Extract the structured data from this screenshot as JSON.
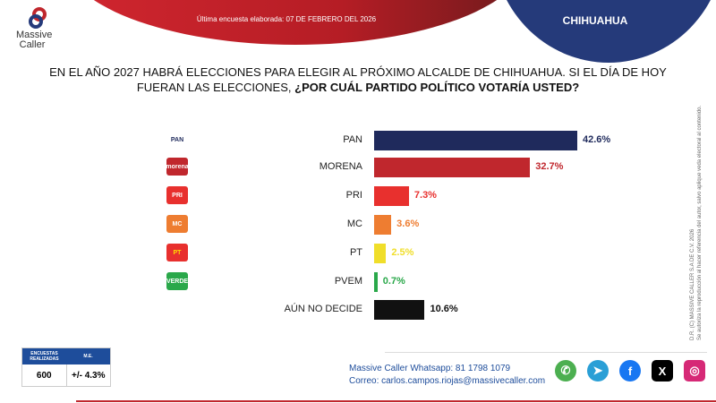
{
  "header": {
    "survey_date": "Última encuesta elaborada: 07 DE FEBRERO DEL 2026",
    "region": "CHIHUAHUA",
    "brand_line1": "Massive",
    "brand_line2": "Caller"
  },
  "question": {
    "part1": "EN EL AÑO 2027 HABRÁ ELECCIONES PARA ELEGIR AL PRÓXIMO ALCALDE DE CHIHUAHUA. SI EL DÍA DE HOY FUERAN LAS ELECCIONES, ",
    "part2": "¿POR CUÁL PARTIDO POLÍTICO VOTARÍA USTED?"
  },
  "copyright": {
    "line1": "D.R. (C) MASSIVE CALLER S.A DE C.V. 2026",
    "line2": "Se autoriza la reproducción al hacer referencia del autor, salvo aplique veda electoral al contenido."
  },
  "chart_data": {
    "type": "bar",
    "orientation": "horizontal",
    "categories": [
      "PAN",
      "MORENA",
      "PRI",
      "MC",
      "PT",
      "PVEM",
      "AÚN NO DECIDE"
    ],
    "values": [
      42.6,
      32.7,
      7.3,
      3.6,
      2.5,
      0.7,
      10.6
    ],
    "value_labels": [
      "42.6%",
      "32.7%",
      "7.3%",
      "3.6%",
      "2.5%",
      "0.7%",
      "10.6%"
    ],
    "colors": [
      "#1f2a5c",
      "#c0272d",
      "#e8302e",
      "#ee7d31",
      "#f0de2a",
      "#2aa84a",
      "#111111"
    ],
    "party_logos": [
      "PAN",
      "morena",
      "PRI",
      "MC",
      "PT",
      "VERDE",
      ""
    ],
    "grid": false,
    "legend": "none"
  },
  "stats": {
    "h1": "ENCUESTAS REALIZADAS",
    "h2": "M.E.",
    "sample": "600",
    "margin": "+/- 4.3%"
  },
  "contact": {
    "whatsapp": "Massive Caller Whatsapp: 81 1798 1079",
    "email": "Correo: carlos.campos.riojas@massivecaller.com"
  },
  "social": [
    {
      "icon": "whatsapp-icon",
      "glyph": "✆",
      "color": "#4caf50"
    },
    {
      "icon": "telegram-icon",
      "glyph": "➤",
      "color": "#2a9fd6"
    },
    {
      "icon": "facebook-icon",
      "glyph": "f",
      "color": "#1877f2"
    },
    {
      "icon": "x-icon",
      "glyph": "X",
      "color": "#000000"
    },
    {
      "icon": "instagram-icon",
      "glyph": "◎",
      "color": "#d62976"
    }
  ]
}
